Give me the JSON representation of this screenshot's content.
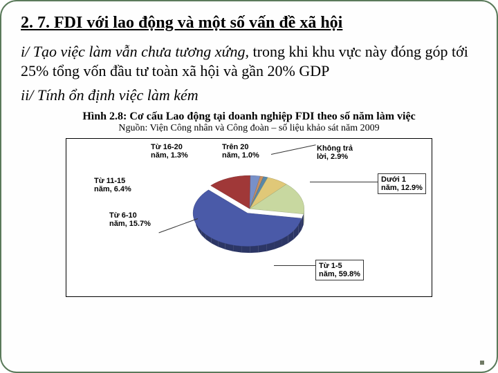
{
  "title": "2. 7. FDI với lao động và một số vấn đề xã hội",
  "para1_italic": "i/ Tạo việc làm vẫn chưa tương xứng, ",
  "para1_rest": "trong khi khu vực này đóng góp tới 25% tổng vốn đầu tư toàn xã hội và gần 20% GDP",
  "para2": "ii/ Tính ổn định việc làm kém",
  "chart_title": "Hình 2.8: Cơ cấu Lao động tại doanh nghiệp FDI theo số năm làm việc",
  "chart_source": "Nguồn: Viện Công nhân và Công đoàn – số liệu khảo sát năm 2009",
  "pie": {
    "type": "pie",
    "background_color": "#ffffff",
    "border_color": "#000000",
    "label_fontsize": 11,
    "slices": [
      {
        "label_l1": "Từ 1-5",
        "label_l2": "năm, 59.8%",
        "value": 59.8,
        "color": "#4a5aa8",
        "boxed": true
      },
      {
        "label_l1": "Dưới 1",
        "label_l2": "năm, 12.9%",
        "value": 12.9,
        "color": "#a03838",
        "boxed": true
      },
      {
        "label_l1": "Không trả",
        "label_l2": "lời, 2.9%",
        "value": 2.9,
        "color": "#7890c8",
        "boxed": false
      },
      {
        "label_l1": "Trên 20",
        "label_l2": "năm, 1.0%",
        "value": 1.0,
        "color": "#c89060",
        "boxed": false
      },
      {
        "label_l1": "Từ 16-20",
        "label_l2": "năm, 1.3%",
        "value": 1.3,
        "color": "#5888a8",
        "boxed": false
      },
      {
        "label_l1": "Từ 11-15",
        "label_l2": "năm, 6.4%",
        "value": 6.4,
        "color": "#e0c878",
        "boxed": false
      },
      {
        "label_l1": "Từ 6-10",
        "label_l2": "năm, 15.7%",
        "value": 15.7,
        "color": "#c8d8a0",
        "boxed": false
      }
    ]
  }
}
